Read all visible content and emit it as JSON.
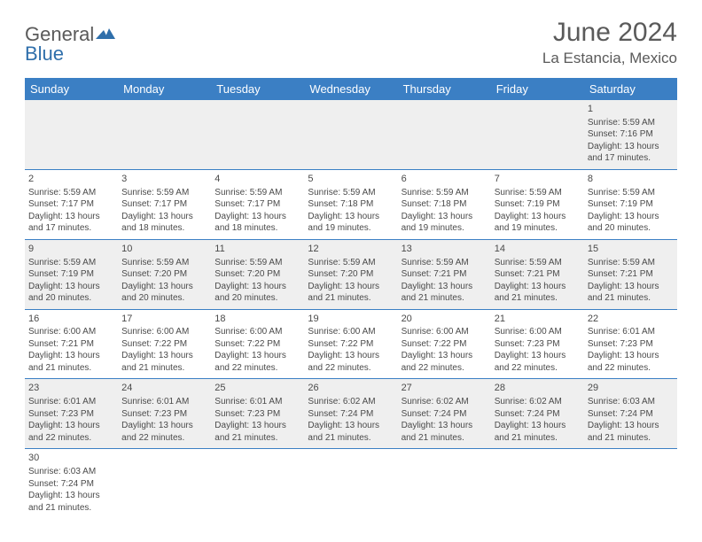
{
  "logo": {
    "general": "General",
    "blue": "Blue"
  },
  "title": "June 2024",
  "location": "La Estancia, Mexico",
  "colors": {
    "header_bg": "#3b7fc4",
    "header_text": "#ffffff",
    "row_odd": "#efefef",
    "row_even": "#ffffff",
    "text": "#4a4a4a",
    "title_text": "#5a5a5a",
    "border": "#3b7fc4"
  },
  "day_headers": [
    "Sunday",
    "Monday",
    "Tuesday",
    "Wednesday",
    "Thursday",
    "Friday",
    "Saturday"
  ],
  "weeks": [
    [
      null,
      null,
      null,
      null,
      null,
      null,
      {
        "d": "1",
        "sr": "5:59 AM",
        "ss": "7:16 PM",
        "dl1": "13 hours",
        "dl2": "and 17 minutes."
      }
    ],
    [
      {
        "d": "2",
        "sr": "5:59 AM",
        "ss": "7:17 PM",
        "dl1": "13 hours",
        "dl2": "and 17 minutes."
      },
      {
        "d": "3",
        "sr": "5:59 AM",
        "ss": "7:17 PM",
        "dl1": "13 hours",
        "dl2": "and 18 minutes."
      },
      {
        "d": "4",
        "sr": "5:59 AM",
        "ss": "7:17 PM",
        "dl1": "13 hours",
        "dl2": "and 18 minutes."
      },
      {
        "d": "5",
        "sr": "5:59 AM",
        "ss": "7:18 PM",
        "dl1": "13 hours",
        "dl2": "and 19 minutes."
      },
      {
        "d": "6",
        "sr": "5:59 AM",
        "ss": "7:18 PM",
        "dl1": "13 hours",
        "dl2": "and 19 minutes."
      },
      {
        "d": "7",
        "sr": "5:59 AM",
        "ss": "7:19 PM",
        "dl1": "13 hours",
        "dl2": "and 19 minutes."
      },
      {
        "d": "8",
        "sr": "5:59 AM",
        "ss": "7:19 PM",
        "dl1": "13 hours",
        "dl2": "and 20 minutes."
      }
    ],
    [
      {
        "d": "9",
        "sr": "5:59 AM",
        "ss": "7:19 PM",
        "dl1": "13 hours",
        "dl2": "and 20 minutes."
      },
      {
        "d": "10",
        "sr": "5:59 AM",
        "ss": "7:20 PM",
        "dl1": "13 hours",
        "dl2": "and 20 minutes."
      },
      {
        "d": "11",
        "sr": "5:59 AM",
        "ss": "7:20 PM",
        "dl1": "13 hours",
        "dl2": "and 20 minutes."
      },
      {
        "d": "12",
        "sr": "5:59 AM",
        "ss": "7:20 PM",
        "dl1": "13 hours",
        "dl2": "and 21 minutes."
      },
      {
        "d": "13",
        "sr": "5:59 AM",
        "ss": "7:21 PM",
        "dl1": "13 hours",
        "dl2": "and 21 minutes."
      },
      {
        "d": "14",
        "sr": "5:59 AM",
        "ss": "7:21 PM",
        "dl1": "13 hours",
        "dl2": "and 21 minutes."
      },
      {
        "d": "15",
        "sr": "5:59 AM",
        "ss": "7:21 PM",
        "dl1": "13 hours",
        "dl2": "and 21 minutes."
      }
    ],
    [
      {
        "d": "16",
        "sr": "6:00 AM",
        "ss": "7:21 PM",
        "dl1": "13 hours",
        "dl2": "and 21 minutes."
      },
      {
        "d": "17",
        "sr": "6:00 AM",
        "ss": "7:22 PM",
        "dl1": "13 hours",
        "dl2": "and 21 minutes."
      },
      {
        "d": "18",
        "sr": "6:00 AM",
        "ss": "7:22 PM",
        "dl1": "13 hours",
        "dl2": "and 22 minutes."
      },
      {
        "d": "19",
        "sr": "6:00 AM",
        "ss": "7:22 PM",
        "dl1": "13 hours",
        "dl2": "and 22 minutes."
      },
      {
        "d": "20",
        "sr": "6:00 AM",
        "ss": "7:22 PM",
        "dl1": "13 hours",
        "dl2": "and 22 minutes."
      },
      {
        "d": "21",
        "sr": "6:00 AM",
        "ss": "7:23 PM",
        "dl1": "13 hours",
        "dl2": "and 22 minutes."
      },
      {
        "d": "22",
        "sr": "6:01 AM",
        "ss": "7:23 PM",
        "dl1": "13 hours",
        "dl2": "and 22 minutes."
      }
    ],
    [
      {
        "d": "23",
        "sr": "6:01 AM",
        "ss": "7:23 PM",
        "dl1": "13 hours",
        "dl2": "and 22 minutes."
      },
      {
        "d": "24",
        "sr": "6:01 AM",
        "ss": "7:23 PM",
        "dl1": "13 hours",
        "dl2": "and 22 minutes."
      },
      {
        "d": "25",
        "sr": "6:01 AM",
        "ss": "7:23 PM",
        "dl1": "13 hours",
        "dl2": "and 21 minutes."
      },
      {
        "d": "26",
        "sr": "6:02 AM",
        "ss": "7:24 PM",
        "dl1": "13 hours",
        "dl2": "and 21 minutes."
      },
      {
        "d": "27",
        "sr": "6:02 AM",
        "ss": "7:24 PM",
        "dl1": "13 hours",
        "dl2": "and 21 minutes."
      },
      {
        "d": "28",
        "sr": "6:02 AM",
        "ss": "7:24 PM",
        "dl1": "13 hours",
        "dl2": "and 21 minutes."
      },
      {
        "d": "29",
        "sr": "6:03 AM",
        "ss": "7:24 PM",
        "dl1": "13 hours",
        "dl2": "and 21 minutes."
      }
    ],
    [
      {
        "d": "30",
        "sr": "6:03 AM",
        "ss": "7:24 PM",
        "dl1": "13 hours",
        "dl2": "and 21 minutes."
      },
      null,
      null,
      null,
      null,
      null,
      null
    ]
  ],
  "labels": {
    "sunrise": "Sunrise: ",
    "sunset": "Sunset: ",
    "daylight": "Daylight: "
  }
}
